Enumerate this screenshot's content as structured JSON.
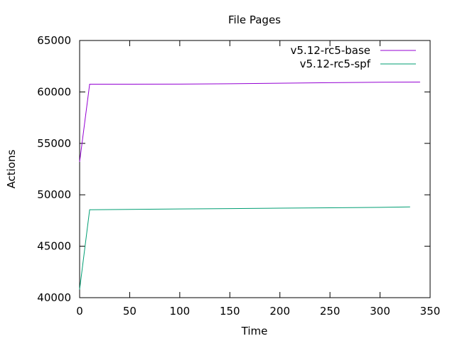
{
  "chart_data": {
    "type": "line",
    "title": "File Pages",
    "xlabel": "Time",
    "ylabel": "Actions",
    "xlim": [
      0,
      350
    ],
    "ylim": [
      40000,
      65000
    ],
    "xticks": [
      0,
      50,
      100,
      150,
      200,
      250,
      300,
      350
    ],
    "yticks": [
      40000,
      45000,
      50000,
      55000,
      60000,
      65000
    ],
    "grid": false,
    "legend_position": "top-right",
    "series": [
      {
        "name": "v5.12-rc5-base",
        "color": "#9400d3",
        "x": [
          0,
          10,
          50,
          100,
          150,
          200,
          250,
          300,
          340
        ],
        "y": [
          53200,
          60750,
          60750,
          60760,
          60800,
          60850,
          60900,
          60940,
          60960
        ]
      },
      {
        "name": "v5.12-rc5-spf",
        "color": "#009e73",
        "x": [
          0,
          10,
          50,
          100,
          150,
          200,
          250,
          300,
          330
        ],
        "y": [
          40800,
          48550,
          48580,
          48620,
          48660,
          48700,
          48740,
          48780,
          48820
        ]
      }
    ]
  }
}
